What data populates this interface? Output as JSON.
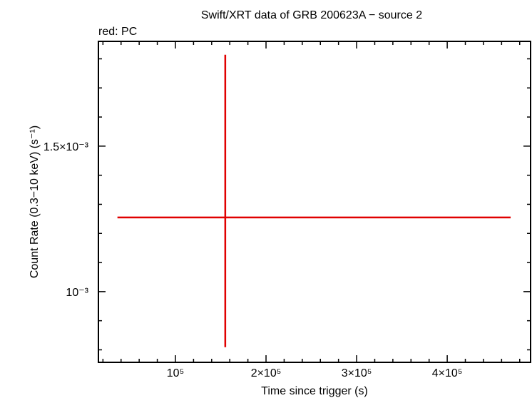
{
  "chart_data": {
    "type": "errorbar",
    "title": "Swift/XRT data of GRB 200623A − source 2",
    "subtitle": "red: PC",
    "x_label": "Time since trigger (s)",
    "y_label": "Count Rate (0.3−10 keV) (s⁻¹)",
    "xlim": [
      15000,
      492000
    ],
    "ylim": [
      0.000757,
      0.00186
    ],
    "xticks": [
      {
        "value": 100000,
        "label": "10⁵"
      },
      {
        "value": 200000,
        "label": "2×10⁵"
      },
      {
        "value": 300000,
        "label": "3×10⁵"
      },
      {
        "value": 400000,
        "label": "4×10⁵"
      }
    ],
    "yticks": [
      {
        "value": 0.001,
        "label": "10⁻³"
      },
      {
        "value": 0.0015,
        "label": "1.5×10⁻³"
      }
    ],
    "xminorticks": [
      20000,
      40000,
      60000,
      80000,
      120000,
      140000,
      160000,
      180000,
      220000,
      240000,
      260000,
      280000,
      320000,
      340000,
      360000,
      380000,
      420000,
      440000,
      460000,
      480000
    ],
    "yminorticks": [
      0.0008,
      0.0009,
      0.0011,
      0.0012,
      0.0013,
      0.0014,
      0.0016,
      0.0017,
      0.0018
    ],
    "series": [
      {
        "name": "PC",
        "color": "#e00000",
        "x": [
          155000
        ],
        "xerr_minus": [
          119000
        ],
        "xerr_plus": [
          315000
        ],
        "values": [
          0.001255
        ],
        "yerr_minus": [
          0.000446
        ],
        "yerr_plus": [
          0.000559
        ]
      }
    ]
  }
}
